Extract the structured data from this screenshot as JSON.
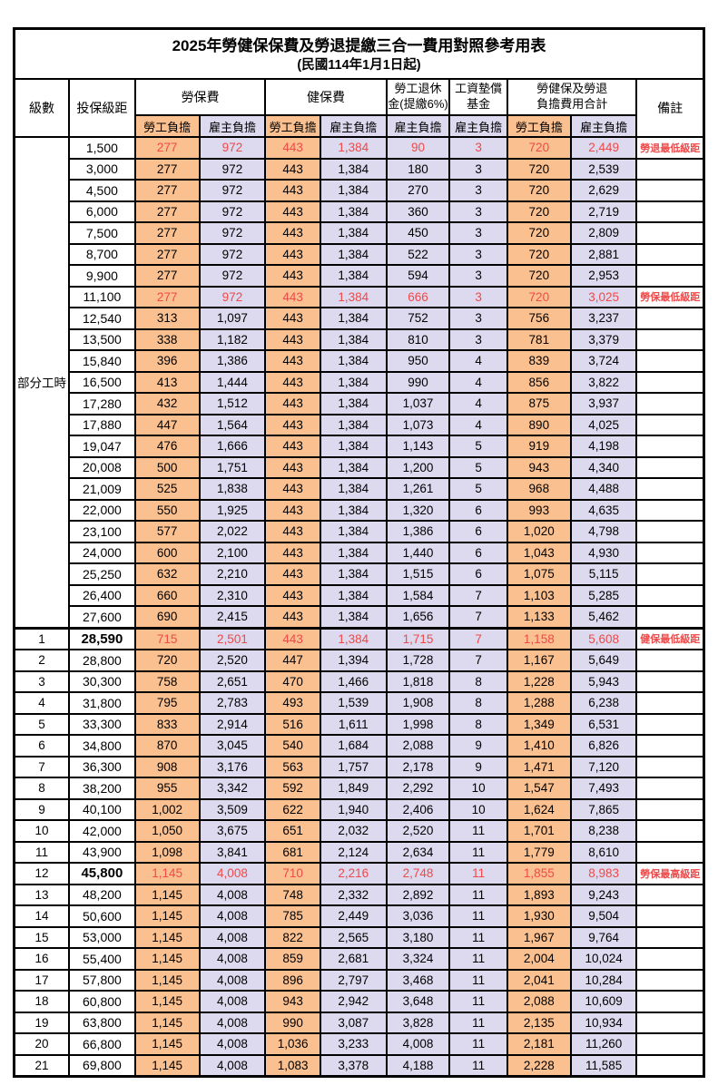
{
  "title": "2025年勞健保保費及勞退提繳三合一費用對照參考用表",
  "subtitle": "(民國114年1月1日起)",
  "colors": {
    "employee_fill": "#fac090",
    "employer_fill": "#ddd9ee",
    "highlight_red": "#ee4a49"
  },
  "header": {
    "level": "級數",
    "bracket": "投保級距",
    "labor_insurance": "勞保費",
    "health_insurance": "健保費",
    "pension_line1": "勞工退休",
    "pension_line2": "金(提繳6%)",
    "wage_fund_line1": "工資墊償",
    "wage_fund_line2": "基金",
    "total_line1": "勞健保及勞退",
    "total_line2": "負擔費用合計",
    "remark": "備註",
    "employee_burden": "勞工負擔",
    "employer_burden": "雇主負擔"
  },
  "part_time_label": "部分工時",
  "part_time_rowspan": 23,
  "rows": [
    {
      "lv": "",
      "br": "1,500",
      "a": "277",
      "b": "972",
      "c": "443",
      "d": "1,384",
      "e": "90",
      "f": "3",
      "g": "720",
      "h": "2,449",
      "rm": "勞退最低級距",
      "red": 1
    },
    {
      "lv": "",
      "br": "3,000",
      "a": "277",
      "b": "972",
      "c": "443",
      "d": "1,384",
      "e": "180",
      "f": "3",
      "g": "720",
      "h": "2,539",
      "rm": ""
    },
    {
      "lv": "",
      "br": "4,500",
      "a": "277",
      "b": "972",
      "c": "443",
      "d": "1,384",
      "e": "270",
      "f": "3",
      "g": "720",
      "h": "2,629",
      "rm": ""
    },
    {
      "lv": "",
      "br": "6,000",
      "a": "277",
      "b": "972",
      "c": "443",
      "d": "1,384",
      "e": "360",
      "f": "3",
      "g": "720",
      "h": "2,719",
      "rm": ""
    },
    {
      "lv": "",
      "br": "7,500",
      "a": "277",
      "b": "972",
      "c": "443",
      "d": "1,384",
      "e": "450",
      "f": "3",
      "g": "720",
      "h": "2,809",
      "rm": ""
    },
    {
      "lv": "",
      "br": "8,700",
      "a": "277",
      "b": "972",
      "c": "443",
      "d": "1,384",
      "e": "522",
      "f": "3",
      "g": "720",
      "h": "2,881",
      "rm": ""
    },
    {
      "lv": "",
      "br": "9,900",
      "a": "277",
      "b": "972",
      "c": "443",
      "d": "1,384",
      "e": "594",
      "f": "3",
      "g": "720",
      "h": "2,953",
      "rm": ""
    },
    {
      "lv": "",
      "br": "11,100",
      "a": "277",
      "b": "972",
      "c": "443",
      "d": "1,384",
      "e": "666",
      "f": "3",
      "g": "720",
      "h": "3,025",
      "rm": "勞保最低級距",
      "red": 1
    },
    {
      "lv": "",
      "br": "12,540",
      "a": "313",
      "b": "1,097",
      "c": "443",
      "d": "1,384",
      "e": "752",
      "f": "3",
      "g": "756",
      "h": "3,237",
      "rm": ""
    },
    {
      "lv": "",
      "br": "13,500",
      "a": "338",
      "b": "1,182",
      "c": "443",
      "d": "1,384",
      "e": "810",
      "f": "3",
      "g": "781",
      "h": "3,379",
      "rm": ""
    },
    {
      "lv": "",
      "br": "15,840",
      "a": "396",
      "b": "1,386",
      "c": "443",
      "d": "1,384",
      "e": "950",
      "f": "4",
      "g": "839",
      "h": "3,724",
      "rm": ""
    },
    {
      "lv": "",
      "br": "16,500",
      "a": "413",
      "b": "1,444",
      "c": "443",
      "d": "1,384",
      "e": "990",
      "f": "4",
      "g": "856",
      "h": "3,822",
      "rm": ""
    },
    {
      "lv": "",
      "br": "17,280",
      "a": "432",
      "b": "1,512",
      "c": "443",
      "d": "1,384",
      "e": "1,037",
      "f": "4",
      "g": "875",
      "h": "3,937",
      "rm": ""
    },
    {
      "lv": "",
      "br": "17,880",
      "a": "447",
      "b": "1,564",
      "c": "443",
      "d": "1,384",
      "e": "1,073",
      "f": "4",
      "g": "890",
      "h": "4,025",
      "rm": ""
    },
    {
      "lv": "",
      "br": "19,047",
      "a": "476",
      "b": "1,666",
      "c": "443",
      "d": "1,384",
      "e": "1,143",
      "f": "5",
      "g": "919",
      "h": "4,198",
      "rm": ""
    },
    {
      "lv": "",
      "br": "20,008",
      "a": "500",
      "b": "1,751",
      "c": "443",
      "d": "1,384",
      "e": "1,200",
      "f": "5",
      "g": "943",
      "h": "4,340",
      "rm": ""
    },
    {
      "lv": "",
      "br": "21,009",
      "a": "525",
      "b": "1,838",
      "c": "443",
      "d": "1,384",
      "e": "1,261",
      "f": "5",
      "g": "968",
      "h": "4,488",
      "rm": ""
    },
    {
      "lv": "",
      "br": "22,000",
      "a": "550",
      "b": "1,925",
      "c": "443",
      "d": "1,384",
      "e": "1,320",
      "f": "6",
      "g": "993",
      "h": "4,635",
      "rm": ""
    },
    {
      "lv": "",
      "br": "23,100",
      "a": "577",
      "b": "2,022",
      "c": "443",
      "d": "1,384",
      "e": "1,386",
      "f": "6",
      "g": "1,020",
      "h": "4,798",
      "rm": ""
    },
    {
      "lv": "",
      "br": "24,000",
      "a": "600",
      "b": "2,100",
      "c": "443",
      "d": "1,384",
      "e": "1,440",
      "f": "6",
      "g": "1,043",
      "h": "4,930",
      "rm": ""
    },
    {
      "lv": "",
      "br": "25,250",
      "a": "632",
      "b": "2,210",
      "c": "443",
      "d": "1,384",
      "e": "1,515",
      "f": "6",
      "g": "1,075",
      "h": "5,115",
      "rm": ""
    },
    {
      "lv": "",
      "br": "26,400",
      "a": "660",
      "b": "2,310",
      "c": "443",
      "d": "1,384",
      "e": "1,584",
      "f": "7",
      "g": "1,103",
      "h": "5,285",
      "rm": ""
    },
    {
      "lv": "",
      "br": "27,600",
      "a": "690",
      "b": "2,415",
      "c": "443",
      "d": "1,384",
      "e": "1,656",
      "f": "7",
      "g": "1,133",
      "h": "5,462",
      "rm": ""
    },
    {
      "lv": "1",
      "br": "28,590",
      "a": "715",
      "b": "2,501",
      "c": "443",
      "d": "1,384",
      "e": "1,715",
      "f": "7",
      "g": "1,158",
      "h": "5,608",
      "rm": "健保最低級距",
      "red": 1,
      "bold": 1,
      "thick": 1
    },
    {
      "lv": "2",
      "br": "28,800",
      "a": "720",
      "b": "2,520",
      "c": "447",
      "d": "1,394",
      "e": "1,728",
      "f": "7",
      "g": "1,167",
      "h": "5,649",
      "rm": ""
    },
    {
      "lv": "3",
      "br": "30,300",
      "a": "758",
      "b": "2,651",
      "c": "470",
      "d": "1,466",
      "e": "1,818",
      "f": "8",
      "g": "1,228",
      "h": "5,943",
      "rm": ""
    },
    {
      "lv": "4",
      "br": "31,800",
      "a": "795",
      "b": "2,783",
      "c": "493",
      "d": "1,539",
      "e": "1,908",
      "f": "8",
      "g": "1,288",
      "h": "6,238",
      "rm": ""
    },
    {
      "lv": "5",
      "br": "33,300",
      "a": "833",
      "b": "2,914",
      "c": "516",
      "d": "1,611",
      "e": "1,998",
      "f": "8",
      "g": "1,349",
      "h": "6,531",
      "rm": ""
    },
    {
      "lv": "6",
      "br": "34,800",
      "a": "870",
      "b": "3,045",
      "c": "540",
      "d": "1,684",
      "e": "2,088",
      "f": "9",
      "g": "1,410",
      "h": "6,826",
      "rm": ""
    },
    {
      "lv": "7",
      "br": "36,300",
      "a": "908",
      "b": "3,176",
      "c": "563",
      "d": "1,757",
      "e": "2,178",
      "f": "9",
      "g": "1,471",
      "h": "7,120",
      "rm": ""
    },
    {
      "lv": "8",
      "br": "38,200",
      "a": "955",
      "b": "3,342",
      "c": "592",
      "d": "1,849",
      "e": "2,292",
      "f": "10",
      "g": "1,547",
      "h": "7,493",
      "rm": ""
    },
    {
      "lv": "9",
      "br": "40,100",
      "a": "1,002",
      "b": "3,509",
      "c": "622",
      "d": "1,940",
      "e": "2,406",
      "f": "10",
      "g": "1,624",
      "h": "7,865",
      "rm": ""
    },
    {
      "lv": "10",
      "br": "42,000",
      "a": "1,050",
      "b": "3,675",
      "c": "651",
      "d": "2,032",
      "e": "2,520",
      "f": "11",
      "g": "1,701",
      "h": "8,238",
      "rm": ""
    },
    {
      "lv": "11",
      "br": "43,900",
      "a": "1,098",
      "b": "3,841",
      "c": "681",
      "d": "2,124",
      "e": "2,634",
      "f": "11",
      "g": "1,779",
      "h": "8,610",
      "rm": ""
    },
    {
      "lv": "12",
      "br": "45,800",
      "a": "1,145",
      "b": "4,008",
      "c": "710",
      "d": "2,216",
      "e": "2,748",
      "f": "11",
      "g": "1,855",
      "h": "8,983",
      "rm": "勞保最高級距",
      "red": 1,
      "bold": 1
    },
    {
      "lv": "13",
      "br": "48,200",
      "a": "1,145",
      "b": "4,008",
      "c": "748",
      "d": "2,332",
      "e": "2,892",
      "f": "11",
      "g": "1,893",
      "h": "9,243",
      "rm": ""
    },
    {
      "lv": "14",
      "br": "50,600",
      "a": "1,145",
      "b": "4,008",
      "c": "785",
      "d": "2,449",
      "e": "3,036",
      "f": "11",
      "g": "1,930",
      "h": "9,504",
      "rm": ""
    },
    {
      "lv": "15",
      "br": "53,000",
      "a": "1,145",
      "b": "4,008",
      "c": "822",
      "d": "2,565",
      "e": "3,180",
      "f": "11",
      "g": "1,967",
      "h": "9,764",
      "rm": ""
    },
    {
      "lv": "16",
      "br": "55,400",
      "a": "1,145",
      "b": "4,008",
      "c": "859",
      "d": "2,681",
      "e": "3,324",
      "f": "11",
      "g": "2,004",
      "h": "10,024",
      "rm": ""
    },
    {
      "lv": "17",
      "br": "57,800",
      "a": "1,145",
      "b": "4,008",
      "c": "896",
      "d": "2,797",
      "e": "3,468",
      "f": "11",
      "g": "2,041",
      "h": "10,284",
      "rm": ""
    },
    {
      "lv": "18",
      "br": "60,800",
      "a": "1,145",
      "b": "4,008",
      "c": "943",
      "d": "2,942",
      "e": "3,648",
      "f": "11",
      "g": "2,088",
      "h": "10,609",
      "rm": ""
    },
    {
      "lv": "19",
      "br": "63,800",
      "a": "1,145",
      "b": "4,008",
      "c": "990",
      "d": "3,087",
      "e": "3,828",
      "f": "11",
      "g": "2,135",
      "h": "10,934",
      "rm": ""
    },
    {
      "lv": "20",
      "br": "66,800",
      "a": "1,145",
      "b": "4,008",
      "c": "1,036",
      "d": "3,233",
      "e": "4,008",
      "f": "11",
      "g": "2,181",
      "h": "11,260",
      "rm": ""
    },
    {
      "lv": "21",
      "br": "69,800",
      "a": "1,145",
      "b": "4,008",
      "c": "1,083",
      "d": "3,378",
      "e": "4,188",
      "f": "11",
      "g": "2,228",
      "h": "11,585",
      "rm": ""
    }
  ]
}
